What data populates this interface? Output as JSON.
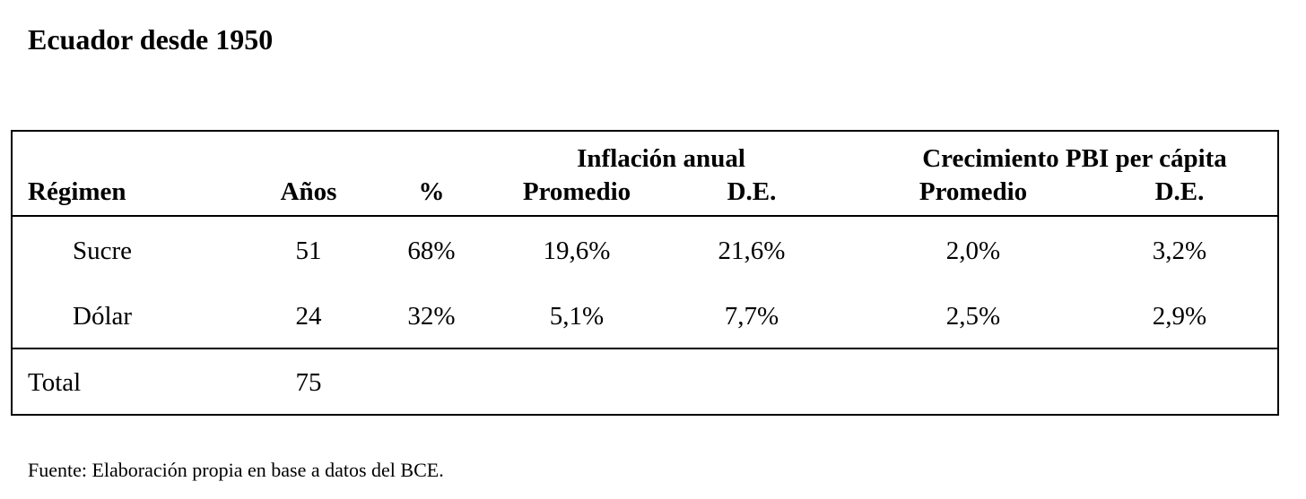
{
  "title": "Ecuador desde 1950",
  "table": {
    "group_headers": {
      "inflation": "Inflación anual",
      "growth": "Crecimiento PBI per cápita"
    },
    "columns": {
      "regime": "Régimen",
      "years": "Años",
      "percent": "%",
      "infl_mean": "Promedio",
      "infl_sd": "D.E.",
      "growth_mean": "Promedio",
      "growth_sd": "D.E."
    },
    "rows": [
      {
        "regime": "Sucre",
        "years": "51",
        "percent": "68%",
        "infl_mean": "19,6%",
        "infl_sd": "21,6%",
        "growth_mean": "2,0%",
        "growth_sd": "3,2%"
      },
      {
        "regime": "Dólar",
        "years": "24",
        "percent": "32%",
        "infl_mean": "5,1%",
        "infl_sd": "7,7%",
        "growth_mean": "2,5%",
        "growth_sd": "2,9%"
      }
    ],
    "total": {
      "label": "Total",
      "years": "75"
    }
  },
  "footnote": "Fuente: Elaboración propia en base a datos del BCE."
}
